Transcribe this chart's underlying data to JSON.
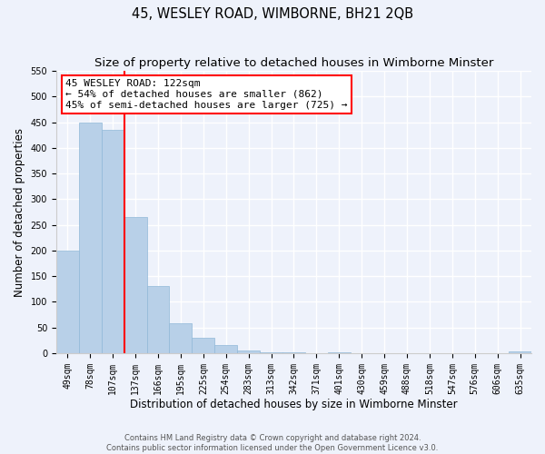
{
  "title": "45, WESLEY ROAD, WIMBORNE, BH21 2QB",
  "subtitle": "Size of property relative to detached houses in Wimborne Minster",
  "xlabel": "Distribution of detached houses by size in Wimborne Minster",
  "ylabel": "Number of detached properties",
  "footer_line1": "Contains HM Land Registry data © Crown copyright and database right 2024.",
  "footer_line2": "Contains public sector information licensed under the Open Government Licence v3.0.",
  "bin_labels": [
    "49sqm",
    "78sqm",
    "107sqm",
    "137sqm",
    "166sqm",
    "195sqm",
    "225sqm",
    "254sqm",
    "283sqm",
    "313sqm",
    "342sqm",
    "371sqm",
    "401sqm",
    "430sqm",
    "459sqm",
    "488sqm",
    "518sqm",
    "547sqm",
    "576sqm",
    "606sqm",
    "635sqm"
  ],
  "bar_values": [
    200,
    450,
    435,
    265,
    130,
    58,
    30,
    15,
    5,
    1,
    2,
    0,
    1,
    0,
    0,
    0,
    0,
    0,
    0,
    0,
    3
  ],
  "bar_color": "#b8d0e8",
  "bar_edge_color": "#90b8d8",
  "vline_x": 2.5,
  "vline_color": "red",
  "annotation_title": "45 WESLEY ROAD: 122sqm",
  "annotation_line1": "← 54% of detached houses are smaller (862)",
  "annotation_line2": "45% of semi-detached houses are larger (725) →",
  "annotation_box_color": "white",
  "annotation_box_edge_color": "red",
  "ylim": [
    0,
    550
  ],
  "yticks": [
    0,
    50,
    100,
    150,
    200,
    250,
    300,
    350,
    400,
    450,
    500,
    550
  ],
  "background_color": "#eef2fb",
  "grid_color": "white",
  "title_fontsize": 10.5,
  "subtitle_fontsize": 9.5,
  "axis_label_fontsize": 8.5,
  "tick_fontsize": 7,
  "annotation_fontsize": 8,
  "footer_fontsize": 6
}
